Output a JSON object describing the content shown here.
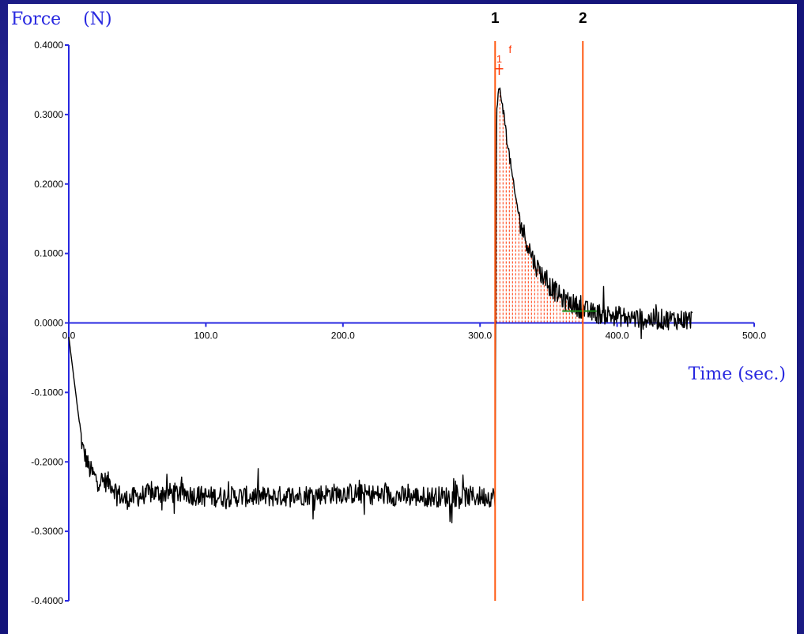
{
  "chart_data": {
    "type": "line",
    "title": "",
    "ylabel": "Force    (N)",
    "xlabel": "Time (sec.)",
    "xlim": [
      0,
      500
    ],
    "ylim": [
      -0.4,
      0.4
    ],
    "x_ticks": [
      0,
      100,
      200,
      300,
      400,
      500
    ],
    "x_tick_labels": [
      "0.0",
      "100.0",
      "200.0",
      "300.0",
      "400.0",
      "500.0"
    ],
    "y_ticks": [
      0.4,
      0.3,
      0.2,
      0.1,
      0.0,
      -0.1,
      -0.2,
      -0.3,
      -0.4
    ],
    "y_tick_labels": [
      "0.4000",
      "0.3000",
      "0.2000",
      "0.1000",
      "0.0000",
      "-0.1000",
      "-0.2000",
      "-0.3000",
      "-0.4000"
    ],
    "grid": false,
    "series": [
      {
        "color": "#000000",
        "x": [
          0,
          5,
          10,
          15,
          20,
          30,
          40,
          50,
          60,
          80,
          100,
          150,
          200,
          250,
          300,
          311,
          311.5,
          312,
          314,
          316,
          320,
          325,
          330,
          340,
          350,
          360,
          370,
          380,
          400,
          420,
          440,
          455
        ],
        "y": [
          -0.02,
          -0.1,
          -0.18,
          -0.21,
          -0.225,
          -0.23,
          -0.255,
          -0.25,
          -0.245,
          -0.245,
          -0.25,
          -0.25,
          -0.245,
          -0.25,
          -0.25,
          -0.25,
          0.06,
          0.3,
          0.34,
          0.32,
          0.26,
          0.19,
          0.14,
          0.085,
          0.055,
          0.035,
          0.025,
          0.015,
          0.01,
          0.005,
          0.005,
          0.005
        ],
        "noise_amplitude": 0.015
      }
    ],
    "cursors": [
      {
        "label": "1",
        "x": 311,
        "color": "#ff5a14"
      },
      {
        "label": "2",
        "x": 375,
        "color": "#ff5a14"
      }
    ],
    "peak_marker": {
      "label": "1",
      "sup": "f",
      "x": 314,
      "y": 0.366,
      "color": "#ff3300"
    },
    "shaded_region": {
      "x_start": 311,
      "x_end": 375,
      "color": "#ff3300",
      "style": "vertical dashed hatching under curve"
    },
    "baseline_segment": {
      "x_start": 360,
      "x_end": 385,
      "y": 0.017,
      "color": "#1a8a1a"
    },
    "colors": {
      "axis": "#2828e0",
      "background": "#ffffff",
      "page_background": "#14147a"
    }
  }
}
